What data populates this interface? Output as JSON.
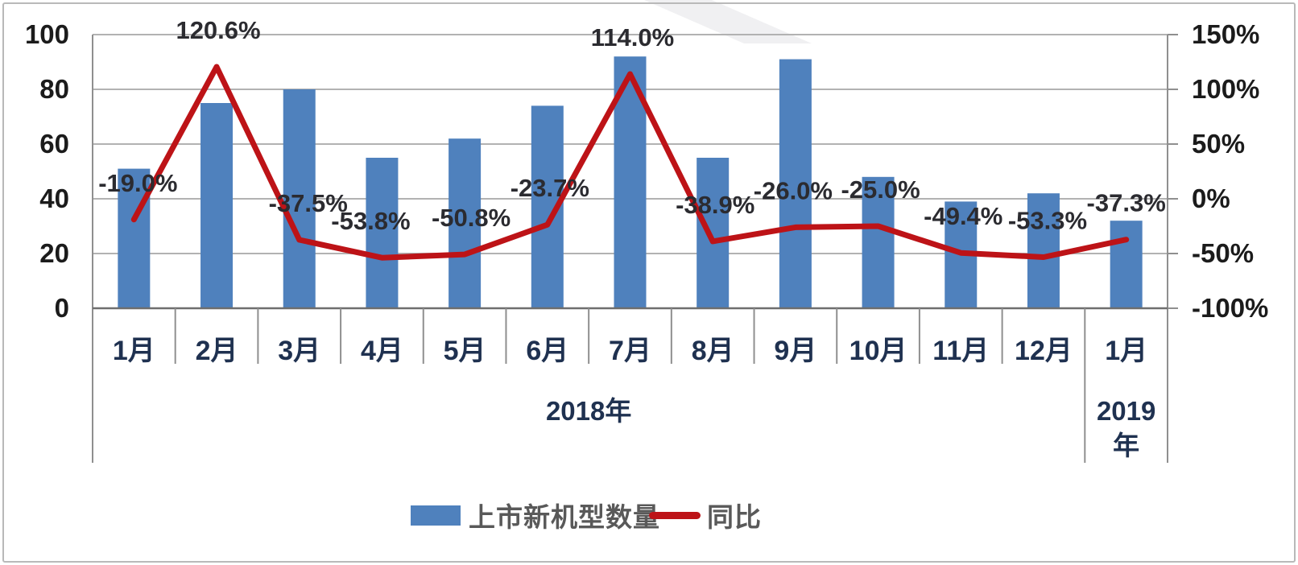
{
  "chart_data": {
    "type": "bar+line-combo",
    "categories": [
      "1月",
      "2月",
      "3月",
      "4月",
      "5月",
      "6月",
      "7月",
      "8月",
      "9月",
      "10月",
      "11月",
      "12月",
      "1月"
    ],
    "category_groups": [
      {
        "label": "2018年",
        "lines": [
          "2018年"
        ],
        "start": 0,
        "end": 11
      },
      {
        "label": "2019年",
        "lines": [
          "2019",
          "年"
        ],
        "start": 12,
        "end": 12
      }
    ],
    "series": [
      {
        "name": "上市新机型数量",
        "type": "bar",
        "axis": "left",
        "color": "#4f81bd",
        "values": [
          51,
          75,
          80,
          55,
          62,
          74,
          92,
          55,
          91,
          48,
          39,
          42,
          32
        ]
      },
      {
        "name": "同比",
        "type": "line",
        "axis": "right",
        "color": "#bd1317",
        "values_pct": [
          -19.0,
          120.6,
          -37.5,
          -53.8,
          -50.8,
          -23.7,
          114.0,
          -38.9,
          -26.0,
          -25.0,
          -49.4,
          -53.3,
          -37.3
        ],
        "point_labels": [
          "-19.0%",
          "120.6%",
          "-37.5%",
          "-53.8%",
          "-50.8%",
          "-23.7%",
          "114.0%",
          "-38.9%",
          "-26.0%",
          "-25.0%",
          "-49.4%",
          "-53.3%",
          "-37.3%"
        ]
      }
    ],
    "left_axis": {
      "tick_labels": [
        "0",
        "20",
        "40",
        "60",
        "80",
        "100"
      ],
      "tick_values": [
        0,
        20,
        40,
        60,
        80,
        100
      ],
      "min": 0,
      "max": 100
    },
    "right_axis": {
      "tick_labels": [
        "-100%",
        "-50%",
        "0%",
        "50%",
        "100%",
        "150%"
      ],
      "tick_values": [
        -100,
        -50,
        0,
        50,
        100,
        150
      ],
      "min": -100,
      "max": 150
    },
    "legend": [
      {
        "label": "上市新机型数量",
        "marker": "bar",
        "color": "#4f81bd"
      },
      {
        "label": "同比",
        "marker": "line",
        "color": "#bd1317"
      }
    ],
    "grid": "horizontal",
    "legend_position": "bottom"
  },
  "colors": {
    "bar": "#4f81bd",
    "line": "#bd1317",
    "gridline": "#b2b2b2",
    "axis_line": "#6e6e6e",
    "tick_line": "#8f8f8f",
    "axis_text": "#1b1b1b",
    "month_text": "#1f3150",
    "data_label_text": "#2b2b30",
    "legend_text": "#595959"
  }
}
